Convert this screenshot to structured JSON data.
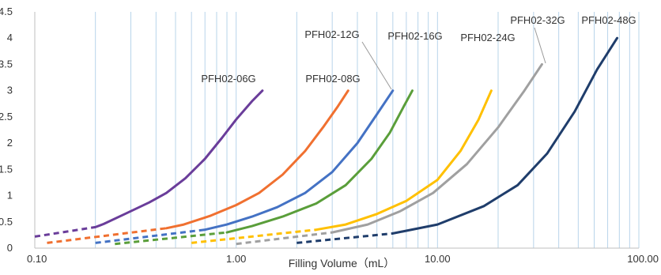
{
  "chart_data": {
    "type": "line",
    "title": "",
    "xlabel": "Filling Volume（mL）",
    "ylabel": "",
    "x_scale": "log",
    "xlim": [
      0.1,
      100
    ],
    "ylim": [
      0,
      4.5
    ],
    "x_ticks": [
      "0.10",
      "1.00",
      "10.00",
      "100.00"
    ],
    "y_ticks": [
      "0",
      "0.5",
      "1",
      "1.5",
      "2",
      "2.5",
      "3",
      "3.5",
      "4",
      "4.5"
    ],
    "grid": {
      "vertical_minor": true,
      "horizontal": false
    },
    "legend": "none",
    "series": [
      {
        "name": "PFH02-06G",
        "color": "#6a3d9a",
        "dashed": [
          [
            0.1,
            0.22
          ],
          [
            0.2,
            0.4
          ]
        ],
        "solid": [
          [
            0.2,
            0.4
          ],
          [
            0.22,
            0.46
          ],
          [
            0.28,
            0.65
          ],
          [
            0.37,
            0.87
          ],
          [
            0.45,
            1.05
          ],
          [
            0.56,
            1.33
          ],
          [
            0.7,
            1.7
          ],
          [
            0.85,
            2.1
          ],
          [
            1.0,
            2.45
          ],
          [
            1.2,
            2.8
          ],
          [
            1.35,
            3.0
          ]
        ]
      },
      {
        "name": "PFH02-08G",
        "color": "#f07030",
        "dashed": [
          [
            0.115,
            0.1
          ],
          [
            0.45,
            0.38
          ]
        ],
        "solid": [
          [
            0.45,
            0.38
          ],
          [
            0.55,
            0.45
          ],
          [
            0.75,
            0.62
          ],
          [
            1.0,
            0.82
          ],
          [
            1.3,
            1.05
          ],
          [
            1.7,
            1.4
          ],
          [
            2.2,
            1.85
          ],
          [
            2.7,
            2.3
          ],
          [
            3.2,
            2.7
          ],
          [
            3.6,
            3.0
          ]
        ]
      },
      {
        "name": "PFH02-12G",
        "color": "#4472c4",
        "dashed": [
          [
            0.2,
            0.1
          ],
          [
            0.7,
            0.35
          ]
        ],
        "solid": [
          [
            0.7,
            0.35
          ],
          [
            0.9,
            0.45
          ],
          [
            1.2,
            0.6
          ],
          [
            1.6,
            0.78
          ],
          [
            2.2,
            1.05
          ],
          [
            3.0,
            1.45
          ],
          [
            4.0,
            2.0
          ],
          [
            5.0,
            2.55
          ],
          [
            6.0,
            3.0
          ]
        ]
      },
      {
        "name": "PFH02-16G",
        "color": "#5a9e3a",
        "dashed": [
          [
            0.25,
            0.08
          ],
          [
            0.9,
            0.3
          ]
        ],
        "solid": [
          [
            0.9,
            0.3
          ],
          [
            1.2,
            0.42
          ],
          [
            1.7,
            0.6
          ],
          [
            2.5,
            0.85
          ],
          [
            3.5,
            1.2
          ],
          [
            4.7,
            1.7
          ],
          [
            5.8,
            2.2
          ],
          [
            6.8,
            2.7
          ],
          [
            7.5,
            3.0
          ]
        ]
      },
      {
        "name": "PFH02-24G",
        "color": "#ffc000",
        "dashed": [
          [
            0.6,
            0.1
          ],
          [
            2.5,
            0.35
          ]
        ],
        "solid": [
          [
            2.5,
            0.35
          ],
          [
            3.5,
            0.45
          ],
          [
            5.0,
            0.65
          ],
          [
            7.0,
            0.9
          ],
          [
            10.0,
            1.3
          ],
          [
            13.0,
            1.85
          ],
          [
            16.0,
            2.45
          ],
          [
            18.5,
            3.0
          ]
        ]
      },
      {
        "name": "PFH02-32G",
        "color": "#a0a0a0",
        "dashed": [
          [
            1.0,
            0.08
          ],
          [
            3.0,
            0.3
          ]
        ],
        "solid": [
          [
            3.0,
            0.3
          ],
          [
            4.5,
            0.45
          ],
          [
            6.5,
            0.7
          ],
          [
            9.5,
            1.05
          ],
          [
            14.0,
            1.6
          ],
          [
            20.0,
            2.3
          ],
          [
            27.0,
            3.0
          ],
          [
            33.0,
            3.5
          ]
        ]
      },
      {
        "name": "PFH02-48G",
        "color": "#1f3d6b",
        "dashed": [
          [
            2.0,
            0.1
          ],
          [
            6.0,
            0.28
          ]
        ],
        "solid": [
          [
            6.0,
            0.28
          ],
          [
            10.0,
            0.45
          ],
          [
            17.0,
            0.8
          ],
          [
            25.0,
            1.2
          ],
          [
            35.0,
            1.8
          ],
          [
            48.0,
            2.6
          ],
          [
            62.0,
            3.4
          ],
          [
            78.0,
            4.0
          ]
        ]
      }
    ]
  }
}
